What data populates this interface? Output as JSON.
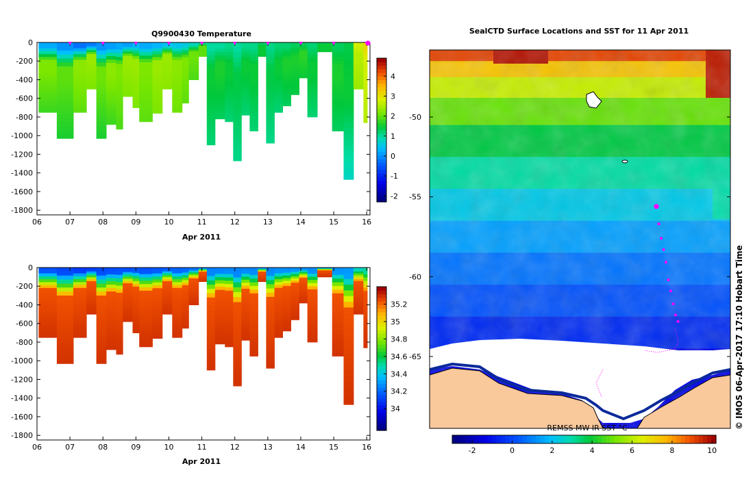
{
  "chart_data": [
    {
      "type": "heatmap",
      "title": "Q9900430  Temperature",
      "xlabel": "Apr 2011",
      "ylabel": "",
      "x_ticks": [
        "06",
        "07",
        "08",
        "09",
        "10",
        "11",
        "12",
        "13",
        "14",
        "15",
        "16"
      ],
      "y_ticks": [
        "0",
        "-200",
        "-400",
        "-600",
        "-800",
        "-1000",
        "-1200",
        "-1400",
        "-1600",
        "-1800"
      ],
      "xlim": [
        6.0,
        16.1
      ],
      "ylim": [
        -1850,
        0
      ],
      "colorbar": {
        "range": [
          -2.3,
          4.9
        ],
        "ticks": [
          "-2",
          "-1",
          "0",
          "1",
          "2",
          "3",
          "4"
        ]
      },
      "profile_markers": [
        7.0,
        8.0,
        9.0,
        10.0,
        11.0,
        12.0,
        13.0,
        14.0,
        15.0,
        16.0
      ],
      "profiles": [
        {
          "t": 6.05,
          "bottom": -750,
          "surface": 0.2,
          "mid": 2.2,
          "deep": 1.8
        },
        {
          "t": 6.6,
          "bottom": -1030,
          "surface": 0.0,
          "mid": 2.0,
          "deep": 1.6
        },
        {
          "t": 7.1,
          "bottom": -750,
          "surface": -0.3,
          "mid": 2.3,
          "deep": 2.0
        },
        {
          "t": 7.5,
          "bottom": -500,
          "surface": -0.2,
          "mid": 2.4,
          "deep": 2.2
        },
        {
          "t": 7.8,
          "bottom": -1030,
          "surface": 0.0,
          "mid": 2.1,
          "deep": 1.6
        },
        {
          "t": 8.1,
          "bottom": -880,
          "surface": 0.1,
          "mid": 2.3,
          "deep": 1.8
        },
        {
          "t": 8.4,
          "bottom": -930,
          "surface": 0.2,
          "mid": 2.2,
          "deep": 1.9
        },
        {
          "t": 8.6,
          "bottom": -580,
          "surface": 0.1,
          "mid": 2.4,
          "deep": 2.2
        },
        {
          "t": 8.9,
          "bottom": -700,
          "surface": 0.3,
          "mid": 2.4,
          "deep": 2.2
        },
        {
          "t": 9.1,
          "bottom": -850,
          "surface": 0.2,
          "mid": 2.2,
          "deep": 2.0
        },
        {
          "t": 9.5,
          "bottom": -760,
          "surface": 0.3,
          "mid": 2.4,
          "deep": 2.2
        },
        {
          "t": 9.8,
          "bottom": -500,
          "surface": 0.4,
          "mid": 2.4,
          "deep": 2.3
        },
        {
          "t": 10.1,
          "bottom": -750,
          "surface": 0.5,
          "mid": 2.3,
          "deep": 2.1
        },
        {
          "t": 10.4,
          "bottom": -650,
          "surface": 0.6,
          "mid": 2.2,
          "deep": 2.0
        },
        {
          "t": 10.6,
          "bottom": -400,
          "surface": 0.8,
          "mid": 2.1,
          "deep": 1.9
        },
        {
          "t": 10.9,
          "bottom": -150,
          "surface": 0.9,
          "mid": 2.0,
          "deep": 2.0
        },
        {
          "t": 11.15,
          "bottom": -1100,
          "surface": 1.0,
          "mid": 1.5,
          "deep": 1.2
        },
        {
          "t": 11.4,
          "bottom": -820,
          "surface": 1.0,
          "mid": 1.6,
          "deep": 1.3
        },
        {
          "t": 11.7,
          "bottom": -850,
          "surface": 1.1,
          "mid": 1.5,
          "deep": 1.2
        },
        {
          "t": 11.95,
          "bottom": -1270,
          "surface": 1.0,
          "mid": 1.4,
          "deep": 1.1
        },
        {
          "t": 12.2,
          "bottom": -780,
          "surface": 1.1,
          "mid": 1.5,
          "deep": 1.2
        },
        {
          "t": 12.45,
          "bottom": -950,
          "surface": 1.1,
          "mid": 1.5,
          "deep": 1.2
        },
        {
          "t": 12.7,
          "bottom": -150,
          "surface": 1.2,
          "mid": 1.5,
          "deep": 1.5
        },
        {
          "t": 12.95,
          "bottom": -1080,
          "surface": 1.1,
          "mid": 1.4,
          "deep": 1.1
        },
        {
          "t": 13.2,
          "bottom": -750,
          "surface": 1.2,
          "mid": 1.5,
          "deep": 1.2
        },
        {
          "t": 13.45,
          "bottom": -680,
          "surface": 1.2,
          "mid": 1.6,
          "deep": 1.3
        },
        {
          "t": 13.7,
          "bottom": -560,
          "surface": 1.3,
          "mid": 1.6,
          "deep": 1.4
        },
        {
          "t": 13.95,
          "bottom": -380,
          "surface": 1.3,
          "mid": 1.7,
          "deep": 1.5
        },
        {
          "t": 14.2,
          "bottom": -800,
          "surface": 1.2,
          "mid": 1.5,
          "deep": 1.2
        },
        {
          "t": 14.5,
          "bottom": -100,
          "surface": 1.3,
          "mid": 1.5,
          "deep": 1.5
        },
        {
          "t": 14.95,
          "bottom": -950,
          "surface": 1.3,
          "mid": 1.6,
          "deep": 1.3
        },
        {
          "t": 15.3,
          "bottom": -1470,
          "surface": 1.4,
          "mid": 1.5,
          "deep": 0.8
        },
        {
          "t": 15.6,
          "bottom": -500,
          "surface": 2.8,
          "mid": 2.6,
          "deep": 2.4
        },
        {
          "t": 15.9,
          "bottom": -860,
          "surface": 3.2,
          "mid": 2.8,
          "deep": 2.6
        }
      ]
    },
    {
      "type": "heatmap",
      "title": "",
      "xlabel": "Apr 2011",
      "ylabel": "",
      "x_ticks": [
        "06",
        "07",
        "08",
        "09",
        "10",
        "11",
        "12",
        "13",
        "14",
        "15",
        "16"
      ],
      "y_ticks": [
        "0",
        "-200",
        "-400",
        "-600",
        "-800",
        "-1000",
        "-1200",
        "-1400",
        "-1600",
        "-1800"
      ],
      "xlim": [
        6.0,
        16.1
      ],
      "ylim": [
        -1850,
        0
      ],
      "colorbar": {
        "range": [
          33.75,
          35.4
        ],
        "ticks": [
          "34",
          "34.2",
          "34.4",
          "34.6",
          "34.8",
          "35",
          "35.2"
        ]
      },
      "profiles_ref": "same stations as temperature panel"
    },
    {
      "type": "heatmap",
      "title": "SealCTD Surface Locations and SST for 11 Apr 2011",
      "xlabel": "",
      "ylabel": "",
      "y_ticks": [
        "-50",
        "-55",
        "-60",
        "-65"
      ],
      "ylim": [
        -69.5,
        -45.8
      ],
      "colorbar": {
        "label": "REMSS MW-IR SST °C",
        "range": [
          -3,
          10.2
        ],
        "ticks": [
          "-2",
          "0",
          "2",
          "4",
          "6",
          "8",
          "10"
        ]
      },
      "track_positions": [
        {
          "lat": -55.6,
          "rel": 0.0
        },
        {
          "lat": -56.7,
          "rel": 0.05
        },
        {
          "lat": -57.6,
          "rel": 0.1
        },
        {
          "lat": -58.3,
          "rel": 0.15
        },
        {
          "lat": -59.1,
          "rel": 0.2
        },
        {
          "lat": -60.2,
          "rel": 0.25
        },
        {
          "lat": -60.9,
          "rel": 0.3
        },
        {
          "lat": -61.7,
          "rel": 0.35
        },
        {
          "lat": -62.4,
          "rel": 0.4
        },
        {
          "lat": -62.8,
          "rel": 0.45
        }
      ],
      "credit": "© IMOS 06-Apr-2017 17:10 Hobart Time"
    }
  ],
  "labels": {
    "top_title": "Q9900430  Temperature",
    "top_xlabel": "Apr 2011",
    "bottom_xlabel": "Apr 2011",
    "map_title": "SealCTD Surface Locations and SST for 11 Apr 2011",
    "map_cbar_label": "REMSS MW-IR SST °C",
    "credit": "© IMOS 06-Apr-2017 17:10 Hobart Time"
  },
  "colors": {
    "marker": "#ff00ff",
    "land": "#f9c89b",
    "ice": "#ffffff"
  }
}
